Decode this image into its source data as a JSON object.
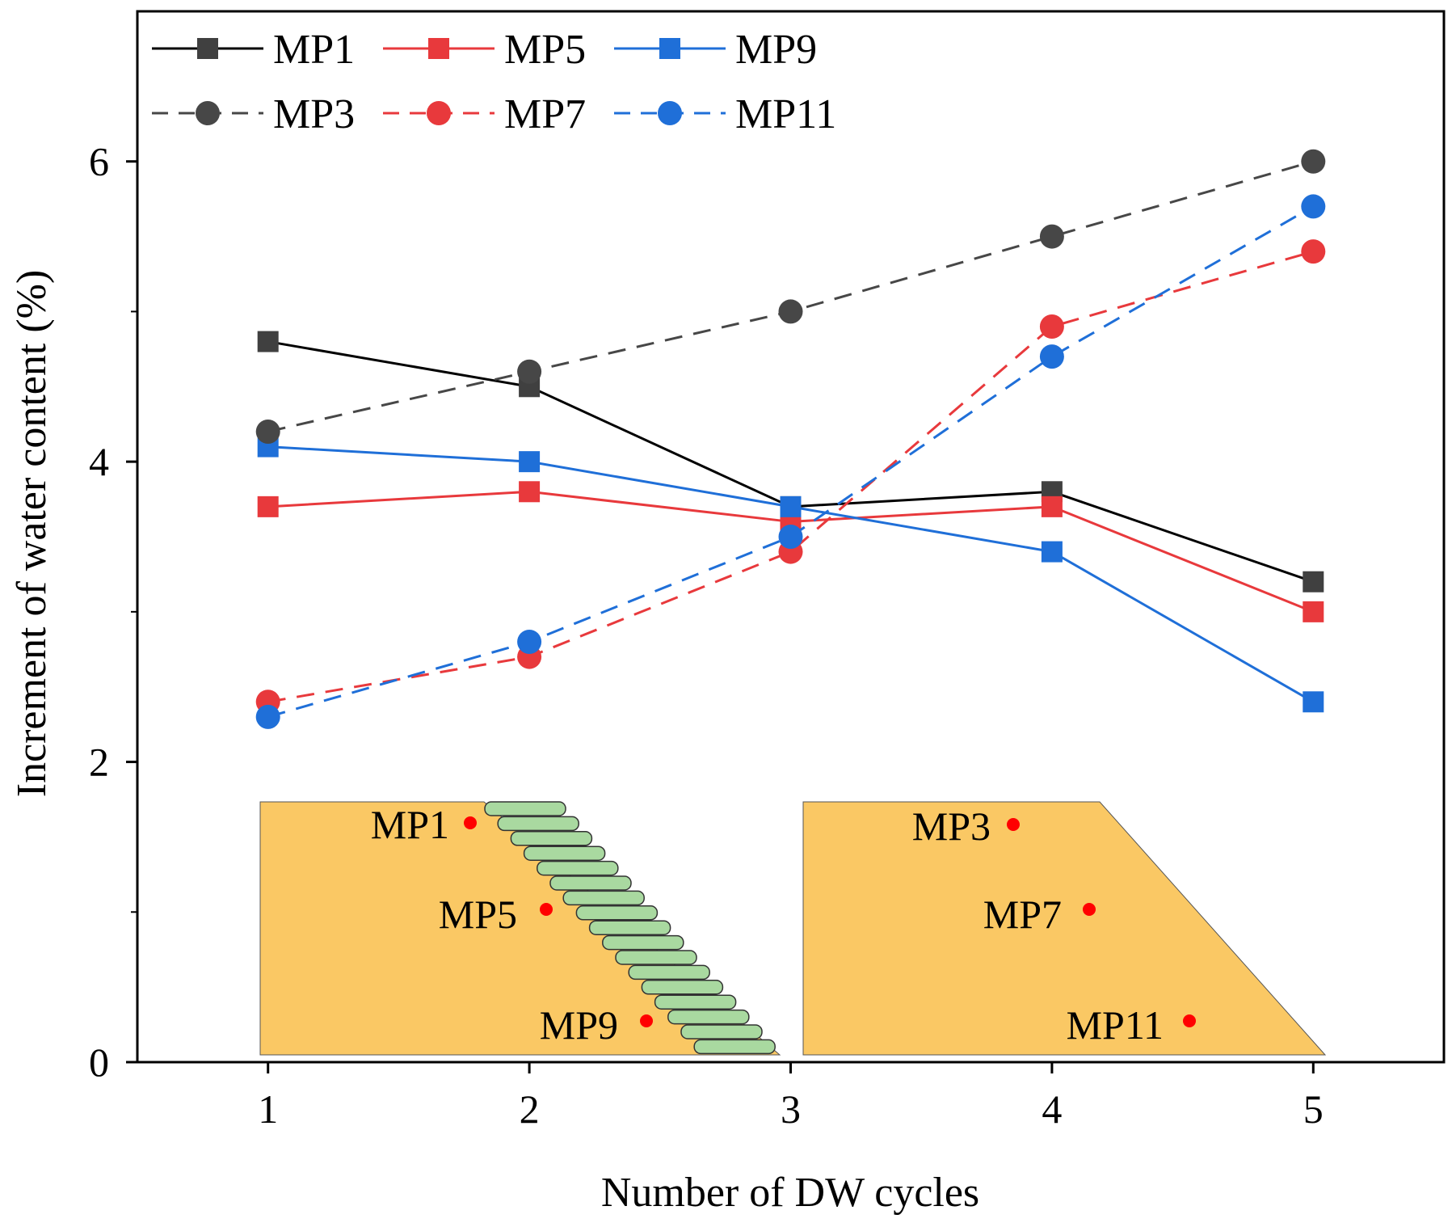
{
  "chart_data": {
    "type": "line",
    "title": "",
    "xlabel": "Number of DW cycles",
    "ylabel": "Increment of water content (%)",
    "x": [
      1,
      2,
      3,
      4,
      5
    ],
    "xlim": [
      0.5,
      5.5
    ],
    "ylim": [
      0,
      7
    ],
    "xticks": [
      1,
      2,
      3,
      4,
      5
    ],
    "yticks": [
      0,
      2,
      4,
      6
    ],
    "grid": false,
    "legend_position": "top-left",
    "series": [
      {
        "name": "MP1",
        "values": [
          4.8,
          4.5,
          3.7,
          3.8,
          3.2
        ],
        "color": "#404040",
        "marker": "square",
        "dash": false
      },
      {
        "name": "MP5",
        "values": [
          3.7,
          3.8,
          3.6,
          3.7,
          3.0
        ],
        "color": "#e8393c",
        "marker": "square",
        "dash": false
      },
      {
        "name": "MP9",
        "values": [
          4.1,
          4.0,
          3.7,
          3.4,
          2.4
        ],
        "color": "#1f6fd8",
        "marker": "square",
        "dash": false
      },
      {
        "name": "MP3",
        "values": [
          4.2,
          4.6,
          5.0,
          5.5,
          6.0
        ],
        "color": "#474747",
        "marker": "circle",
        "dash": true
      },
      {
        "name": "MP7",
        "values": [
          2.4,
          2.7,
          3.4,
          4.9,
          5.4
        ],
        "color": "#e8393c",
        "marker": "circle",
        "dash": true
      },
      {
        "name": "MP11",
        "values": [
          2.3,
          2.8,
          3.5,
          4.7,
          5.7
        ],
        "color": "#1f6fd8",
        "marker": "circle",
        "dash": true
      }
    ],
    "line_colors": {
      "MP1": "#000000"
    },
    "inset": {
      "fill_color": "#fac864",
      "stair_color": "#a9d9a0",
      "point_color": "#ff0000",
      "left_labels": [
        "MP1",
        "MP5",
        "MP9"
      ],
      "right_labels": [
        "MP3",
        "MP7",
        "MP11"
      ]
    }
  }
}
